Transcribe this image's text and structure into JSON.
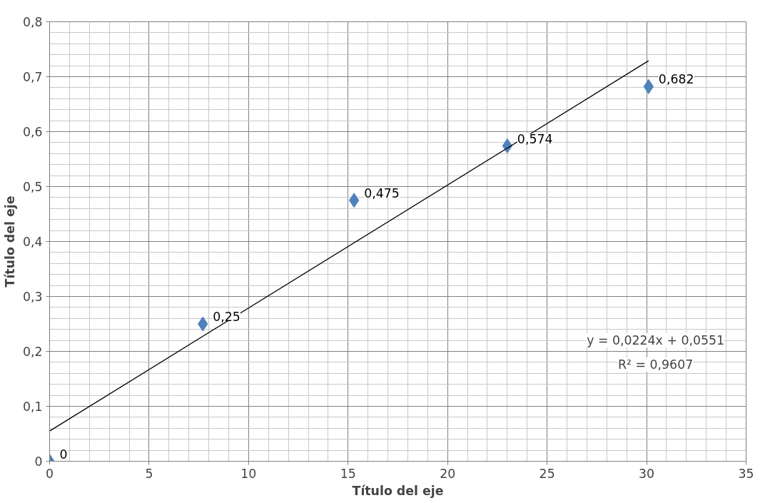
{
  "chart_data": {
    "type": "scatter",
    "xlabel": "Título del eje",
    "ylabel": "Título del eje",
    "x": [
      0,
      7.7,
      15.3,
      23.0,
      30.1
    ],
    "series": [
      {
        "color": "#4f81bd",
        "values": [
          0,
          0.25,
          0.475,
          0.574,
          0.682
        ],
        "value_labels": [
          "0",
          "0,25",
          "0,475",
          "0,574",
          "0,682"
        ],
        "marker": "diamond"
      },
      {
        "type": "line",
        "color": "#000000",
        "x": [
          0,
          30.1
        ],
        "values": [
          0.055,
          0.729
        ],
        "marker": "none",
        "line_style": "solid"
      }
    ],
    "xlim": [
      0,
      35
    ],
    "xticks": [
      0,
      5,
      10,
      15,
      20,
      25,
      30,
      35
    ],
    "ylim": [
      0,
      0.8
    ],
    "yticks": [
      0,
      {
        "value": 0.1,
        "label": "0,1"
      },
      {
        "value": 0.2,
        "label": "0,2"
      },
      {
        "value": 0.3,
        "label": "0,3"
      },
      {
        "value": 0.4,
        "label": "0,4"
      },
      {
        "value": 0.5,
        "label": "0,5"
      },
      {
        "value": 0.6,
        "label": "0,6"
      },
      {
        "value": 0.7,
        "label": "0,7"
      },
      {
        "value": 0.8,
        "label": "0,8"
      }
    ],
    "annotations": [
      "y = 0,0224x + 0,0551",
      "R² = 0,9607"
    ],
    "grid": true
  }
}
